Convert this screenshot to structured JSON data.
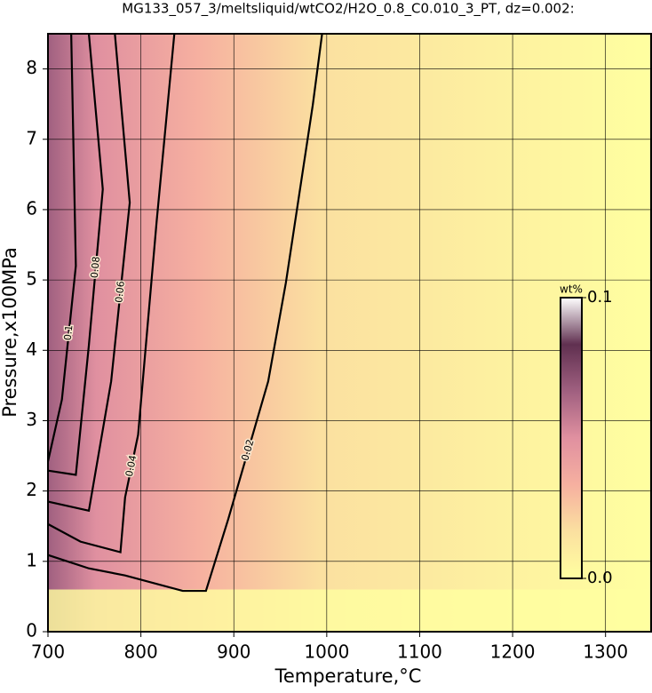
{
  "chart_data": {
    "type": "contour",
    "title": "MG133_057_3/meltsliquid/wtCO2/H2O_0.8_C0.010_3_PT, dz=0.002:",
    "x_label": "Temperature,°C",
    "y_label": "Pressure,x100MPa",
    "xlim": [
      700,
      1350
    ],
    "ylim": [
      0,
      8.5
    ],
    "xticks": [
      700,
      800,
      900,
      1000,
      1100,
      1200,
      1300
    ],
    "yticks": [
      0,
      1,
      2,
      3,
      4,
      5,
      6,
      7,
      8
    ],
    "grid": true,
    "colorbar": {
      "label": "wt%",
      "colormap": [
        "#ffffa0",
        "#fbe0a0",
        "#f6b0a0",
        "#e090a0",
        "#a06080",
        "#603050",
        "#ffffff"
      ],
      "ticks": [
        {
          "value": 0,
          "label": "0.0"
        },
        0.1
      ]
    },
    "contours": [
      {
        "level": 0.02,
        "x": [
          700,
          744,
          783,
          845,
          870,
          894,
          937,
          956,
          985,
          995
        ],
        "y": [
          1.09,
          0.9,
          0.8,
          0.58,
          0.58,
          1.6,
          3.56,
          4.96,
          7.49,
          8.5
        ]
      },
      {
        "level": 0.04,
        "x": [
          700,
          735,
          778,
          783,
          797,
          817,
          836
        ],
        "y": [
          1.53,
          1.28,
          1.13,
          1.91,
          2.8,
          5.84,
          8.5
        ]
      },
      {
        "level": 0.06,
        "x": [
          700,
          744,
          768,
          788,
          772
        ],
        "y": [
          1.85,
          1.72,
          3.56,
          6.1,
          8.5
        ]
      },
      {
        "level": 0.08,
        "x": [
          700,
          730,
          744,
          759,
          744
        ],
        "y": [
          2.29,
          2.23,
          4.07,
          6.29,
          8.5
        ]
      },
      {
        "level": 0.1,
        "x": [
          700,
          715,
          730,
          725
        ],
        "y": [
          2.42,
          3.3,
          5.2,
          8.5
        ]
      }
    ]
  }
}
